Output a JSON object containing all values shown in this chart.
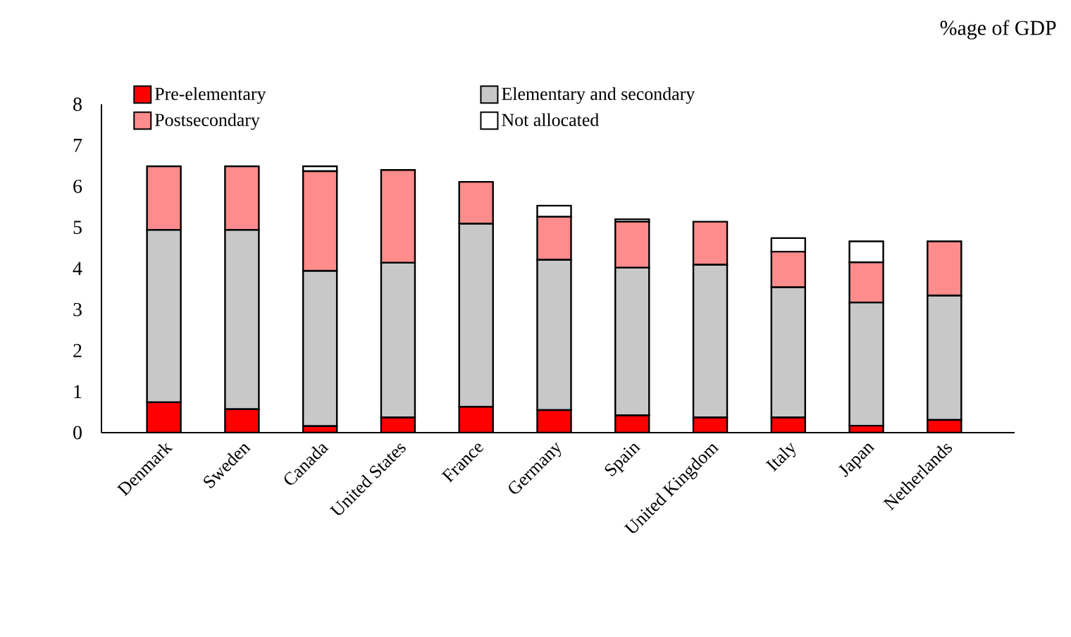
{
  "chart_data": {
    "type": "bar",
    "stacked": true,
    "annotations": [
      "%age of GDP"
    ],
    "categories": [
      "Denmark",
      "Sweden",
      "Canada",
      "United States",
      "France",
      "Germany",
      "Spain",
      "United Kingdom",
      "Italy",
      "Japan",
      "Netherlands"
    ],
    "series": [
      {
        "name": "Pre-elementary",
        "color": "#ff0000",
        "values": [
          0.74,
          0.57,
          0.16,
          0.37,
          0.63,
          0.55,
          0.42,
          0.37,
          0.37,
          0.17,
          0.31
        ]
      },
      {
        "name": "Elementary and secondary",
        "color": "#c8c8c8",
        "values": [
          4.2,
          4.37,
          3.78,
          3.77,
          4.46,
          3.66,
          3.6,
          3.72,
          3.17,
          3.0,
          3.03
        ]
      },
      {
        "name": "Postsecondary",
        "color": "#ff8c8c",
        "values": [
          1.55,
          1.55,
          2.43,
          2.26,
          1.02,
          1.05,
          1.12,
          1.05,
          0.87,
          0.98,
          1.32
        ]
      },
      {
        "name": "Not allocated",
        "color": "#ffffff",
        "values": [
          0,
          0,
          0.12,
          0,
          0,
          0.27,
          0.06,
          0,
          0.33,
          0.51,
          0
        ]
      }
    ],
    "ylim": [
      0,
      8
    ],
    "yticks": [
      0,
      1,
      2,
      3,
      4,
      5,
      6,
      7,
      8
    ],
    "grid": false,
    "legend": "top"
  }
}
